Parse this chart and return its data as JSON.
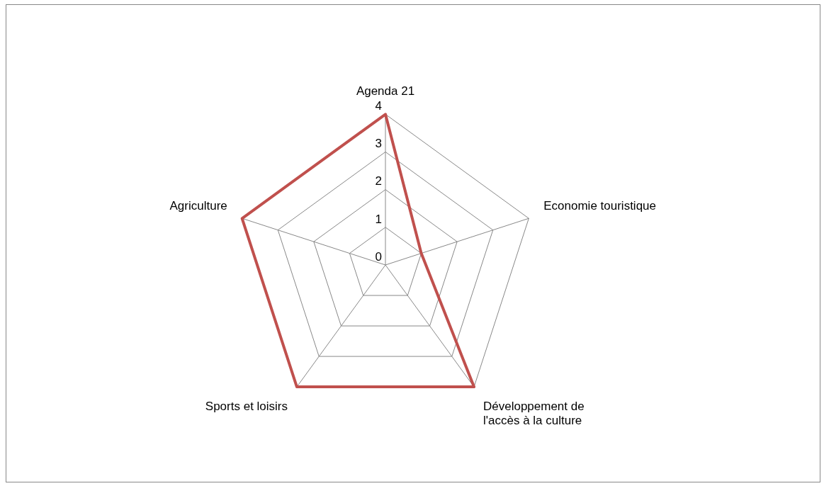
{
  "chart_data": {
    "type": "radar",
    "categories": [
      "Agenda 21",
      "Economie touristique",
      "Développement de l'accès à la culture",
      "Sports et loisirs",
      "Agriculture"
    ],
    "series": [
      {
        "color": "#c0504d",
        "values": [
          4,
          1,
          4,
          4,
          4
        ]
      }
    ],
    "ylim": [
      0,
      4
    ],
    "yticks": [
      0,
      1,
      2,
      3,
      4
    ],
    "grid": true
  }
}
